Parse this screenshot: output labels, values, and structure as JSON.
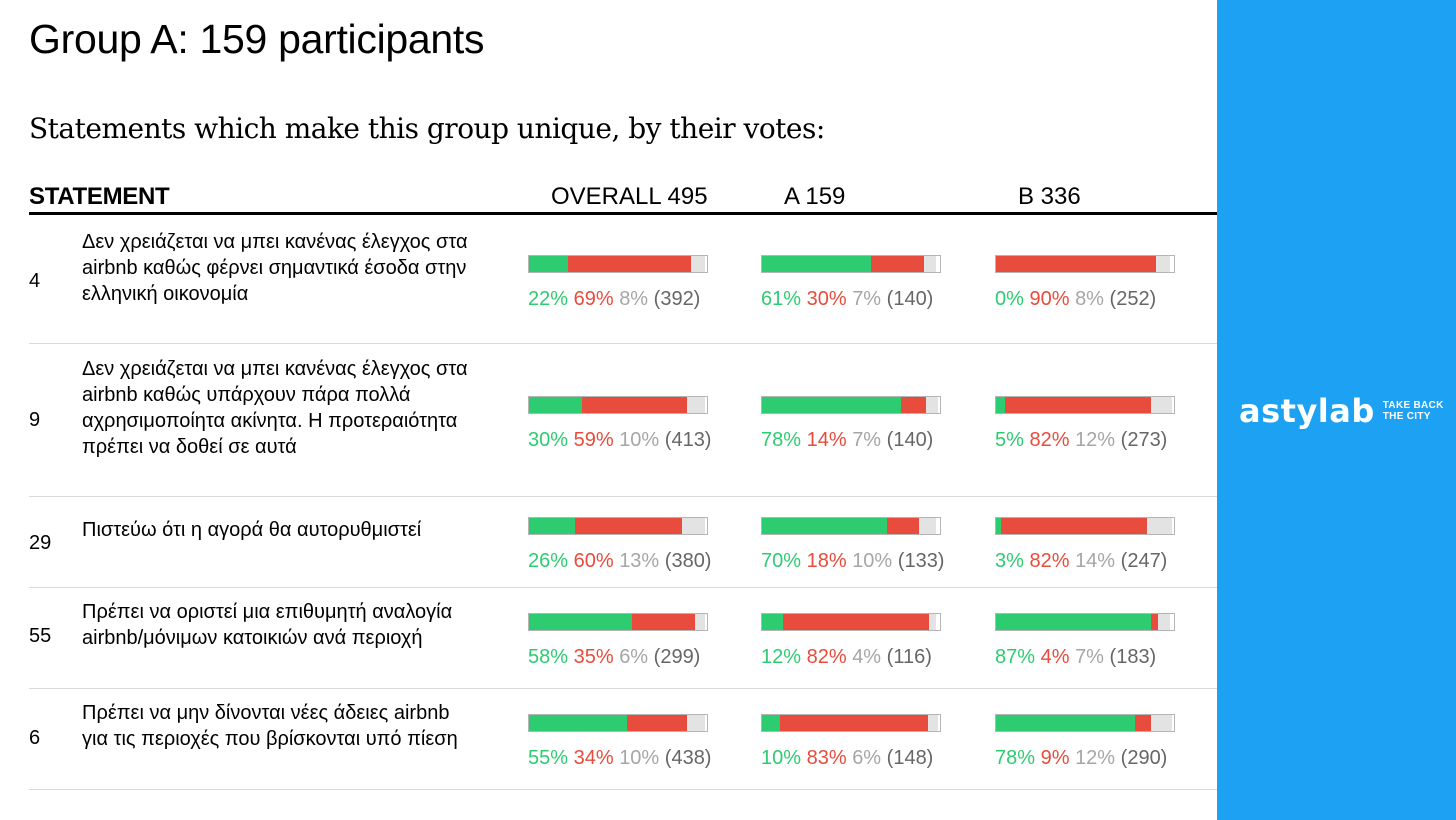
{
  "title": "Group A: 159 participants",
  "subtitle": "Statements which make this group unique, by their votes:",
  "headers": {
    "statement": "STATEMENT",
    "overall": "OVERALL 495",
    "a": "A 159",
    "b": "B 336"
  },
  "colors": {
    "agree": "#2ecc71",
    "disagree": "#e74c3c",
    "pass": "#a6a6a6",
    "count": "#666666",
    "sidebar": "#1da1f2"
  },
  "brand": {
    "name": "astylab",
    "tagline_1": "TAKE BACK",
    "tagline_2": "THE CITY"
  },
  "rows": [
    {
      "id": "4",
      "text": "Δεν χρειάζεται να μπει κανένας έλεγχος στα airbnb καθώς φέρνει σημαντικά έσοδα στην ελληνική οικονομία",
      "groups": [
        {
          "agree": "22%",
          "disagree": "69%",
          "pass": "8%",
          "count": "(392)",
          "a": 22,
          "d": 69,
          "p": 8
        },
        {
          "agree": "61%",
          "disagree": "30%",
          "pass": "7%",
          "count": "(140)",
          "a": 61,
          "d": 30,
          "p": 7
        },
        {
          "agree": "0%",
          "disagree": "90%",
          "pass": "8%",
          "count": "(252)",
          "a": 0,
          "d": 90,
          "p": 8
        }
      ]
    },
    {
      "id": "9",
      "text": "Δεν χρειάζεται να μπει κανένας έλεγχος στα airbnb καθώς υπάρχουν πάρα πολλά αχρησιμοποίητα ακίνητα. Η προτεραιότητα πρέπει να δοθεί σε αυτά",
      "groups": [
        {
          "agree": "30%",
          "disagree": "59%",
          "pass": "10%",
          "count": "(413)",
          "a": 30,
          "d": 59,
          "p": 10
        },
        {
          "agree": "78%",
          "disagree": "14%",
          "pass": "7%",
          "count": "(140)",
          "a": 78,
          "d": 14,
          "p": 7
        },
        {
          "agree": "5%",
          "disagree": "82%",
          "pass": "12%",
          "count": "(273)",
          "a": 5,
          "d": 82,
          "p": 12
        }
      ]
    },
    {
      "id": "29",
      "text": "Πιστεύω ότι η αγορά θα αυτορυθμιστεί",
      "groups": [
        {
          "agree": "26%",
          "disagree": "60%",
          "pass": "13%",
          "count": "(380)",
          "a": 26,
          "d": 60,
          "p": 13
        },
        {
          "agree": "70%",
          "disagree": "18%",
          "pass": "10%",
          "count": "(133)",
          "a": 70,
          "d": 18,
          "p": 10
        },
        {
          "agree": "3%",
          "disagree": "82%",
          "pass": "14%",
          "count": "(247)",
          "a": 3,
          "d": 82,
          "p": 14
        }
      ]
    },
    {
      "id": "55",
      "text": "Πρέπει να οριστεί μια επιθυμητή αναλογία airbnb/μόνιμων κατοικιών ανά περιοχή",
      "groups": [
        {
          "agree": "58%",
          "disagree": "35%",
          "pass": "6%",
          "count": "(299)",
          "a": 58,
          "d": 35,
          "p": 6
        },
        {
          "agree": "12%",
          "disagree": "82%",
          "pass": "4%",
          "count": "(116)",
          "a": 12,
          "d": 82,
          "p": 4
        },
        {
          "agree": "87%",
          "disagree": "4%",
          "pass": "7%",
          "count": "(183)",
          "a": 87,
          "d": 4,
          "p": 7
        }
      ]
    },
    {
      "id": "6",
      "text": "Πρέπει να μην δίνονται νέες άδειες airbnb για τις περιοχές που βρίσκονται υπό πίεση",
      "groups": [
        {
          "agree": "55%",
          "disagree": "34%",
          "pass": "10%",
          "count": "(438)",
          "a": 55,
          "d": 34,
          "p": 10
        },
        {
          "agree": "10%",
          "disagree": "83%",
          "pass": "6%",
          "count": "(148)",
          "a": 10,
          "d": 83,
          "p": 6
        },
        {
          "agree": "78%",
          "disagree": "9%",
          "pass": "12%",
          "count": "(290)",
          "a": 78,
          "d": 9,
          "p": 12
        }
      ]
    }
  ]
}
